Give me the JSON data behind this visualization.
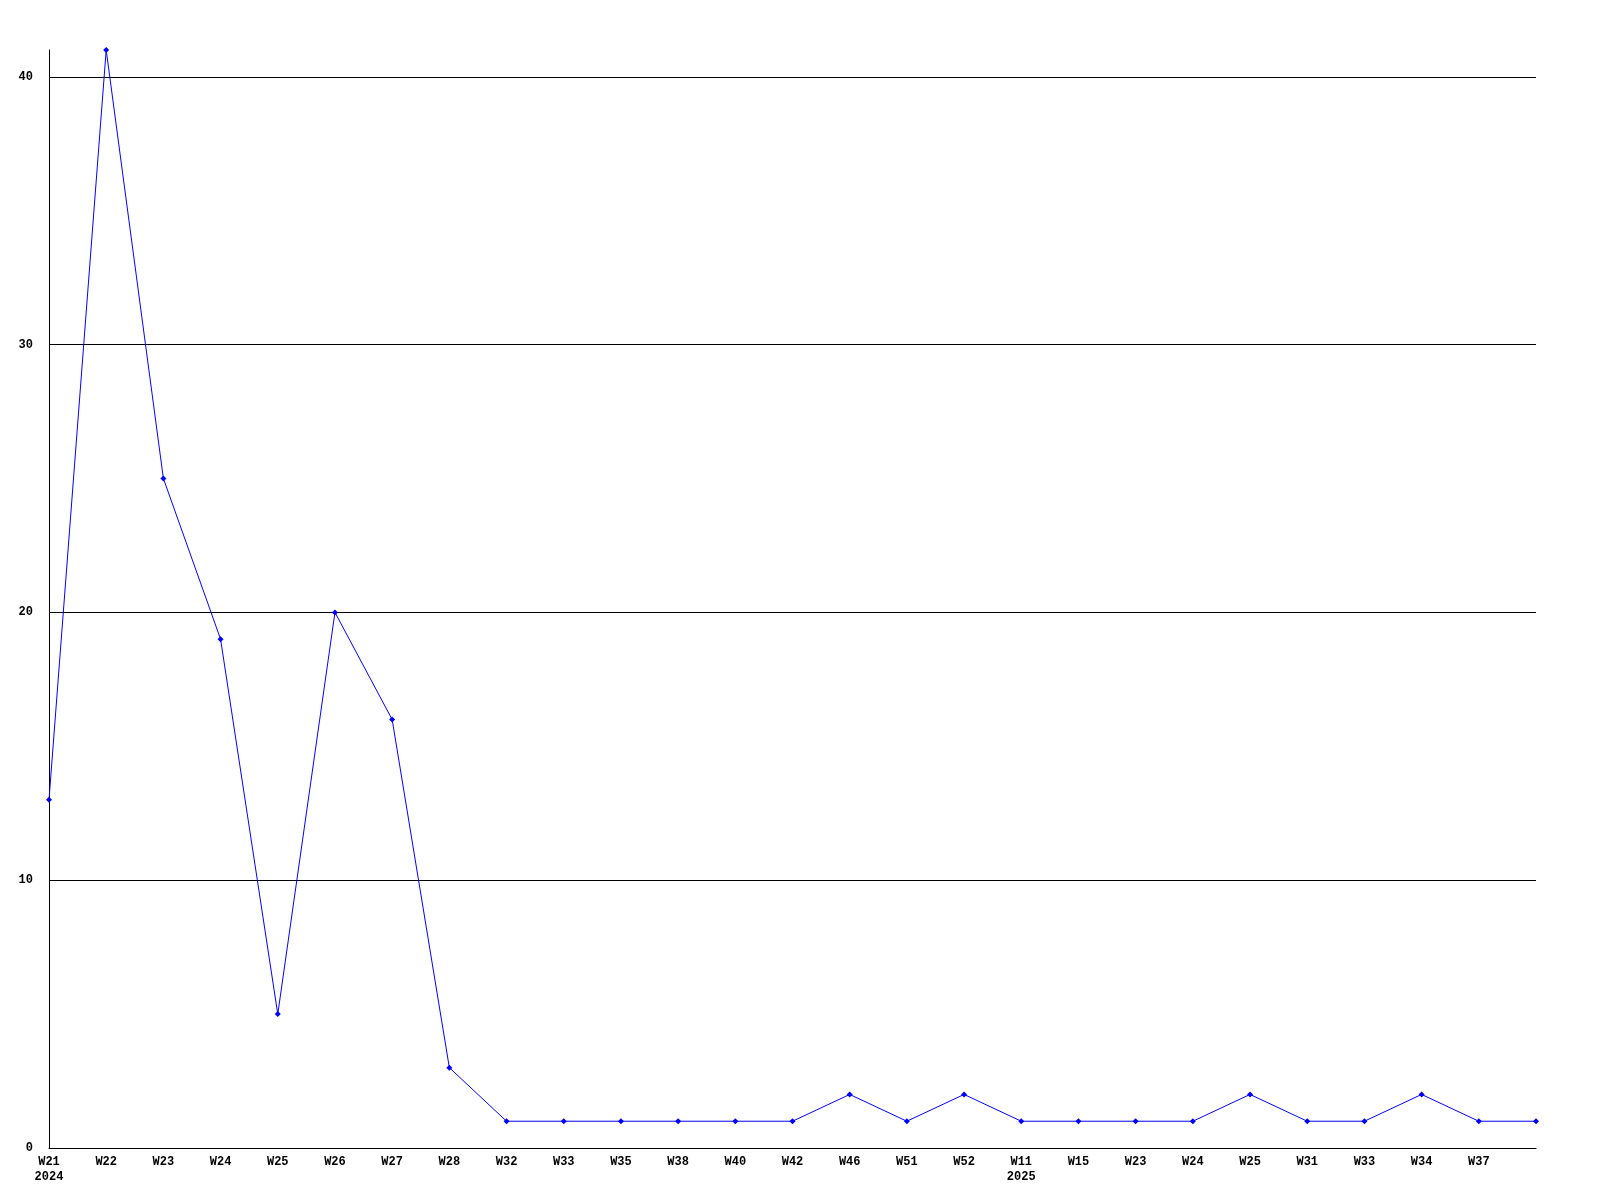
{
  "chart_data": {
    "type": "line",
    "categories": [
      "W21\n2024",
      "W22",
      "W23",
      "W24",
      "W25",
      "W26",
      "W27",
      "W28",
      "W32",
      "W33",
      "W35",
      "W38",
      "W40",
      "W42",
      "W46",
      "W51",
      "W52",
      "W11\n2025",
      "W15",
      "W23",
      "W24",
      "W25",
      "W31",
      "W33",
      "W34",
      "W37",
      null
    ],
    "series": [
      {
        "color": "#0000ff",
        "values": [
          13,
          41,
          25,
          19,
          5,
          20,
          16,
          3,
          1,
          1,
          1,
          1,
          1,
          1,
          2,
          1,
          2,
          1,
          1,
          1,
          1,
          2,
          1,
          1,
          2,
          1,
          1
        ]
      }
    ],
    "ylim": [
      0,
      41
    ],
    "yticks": [
      0,
      10,
      20,
      30,
      40
    ],
    "grid": "y",
    "marker": "diamond",
    "line_style": "solid"
  }
}
